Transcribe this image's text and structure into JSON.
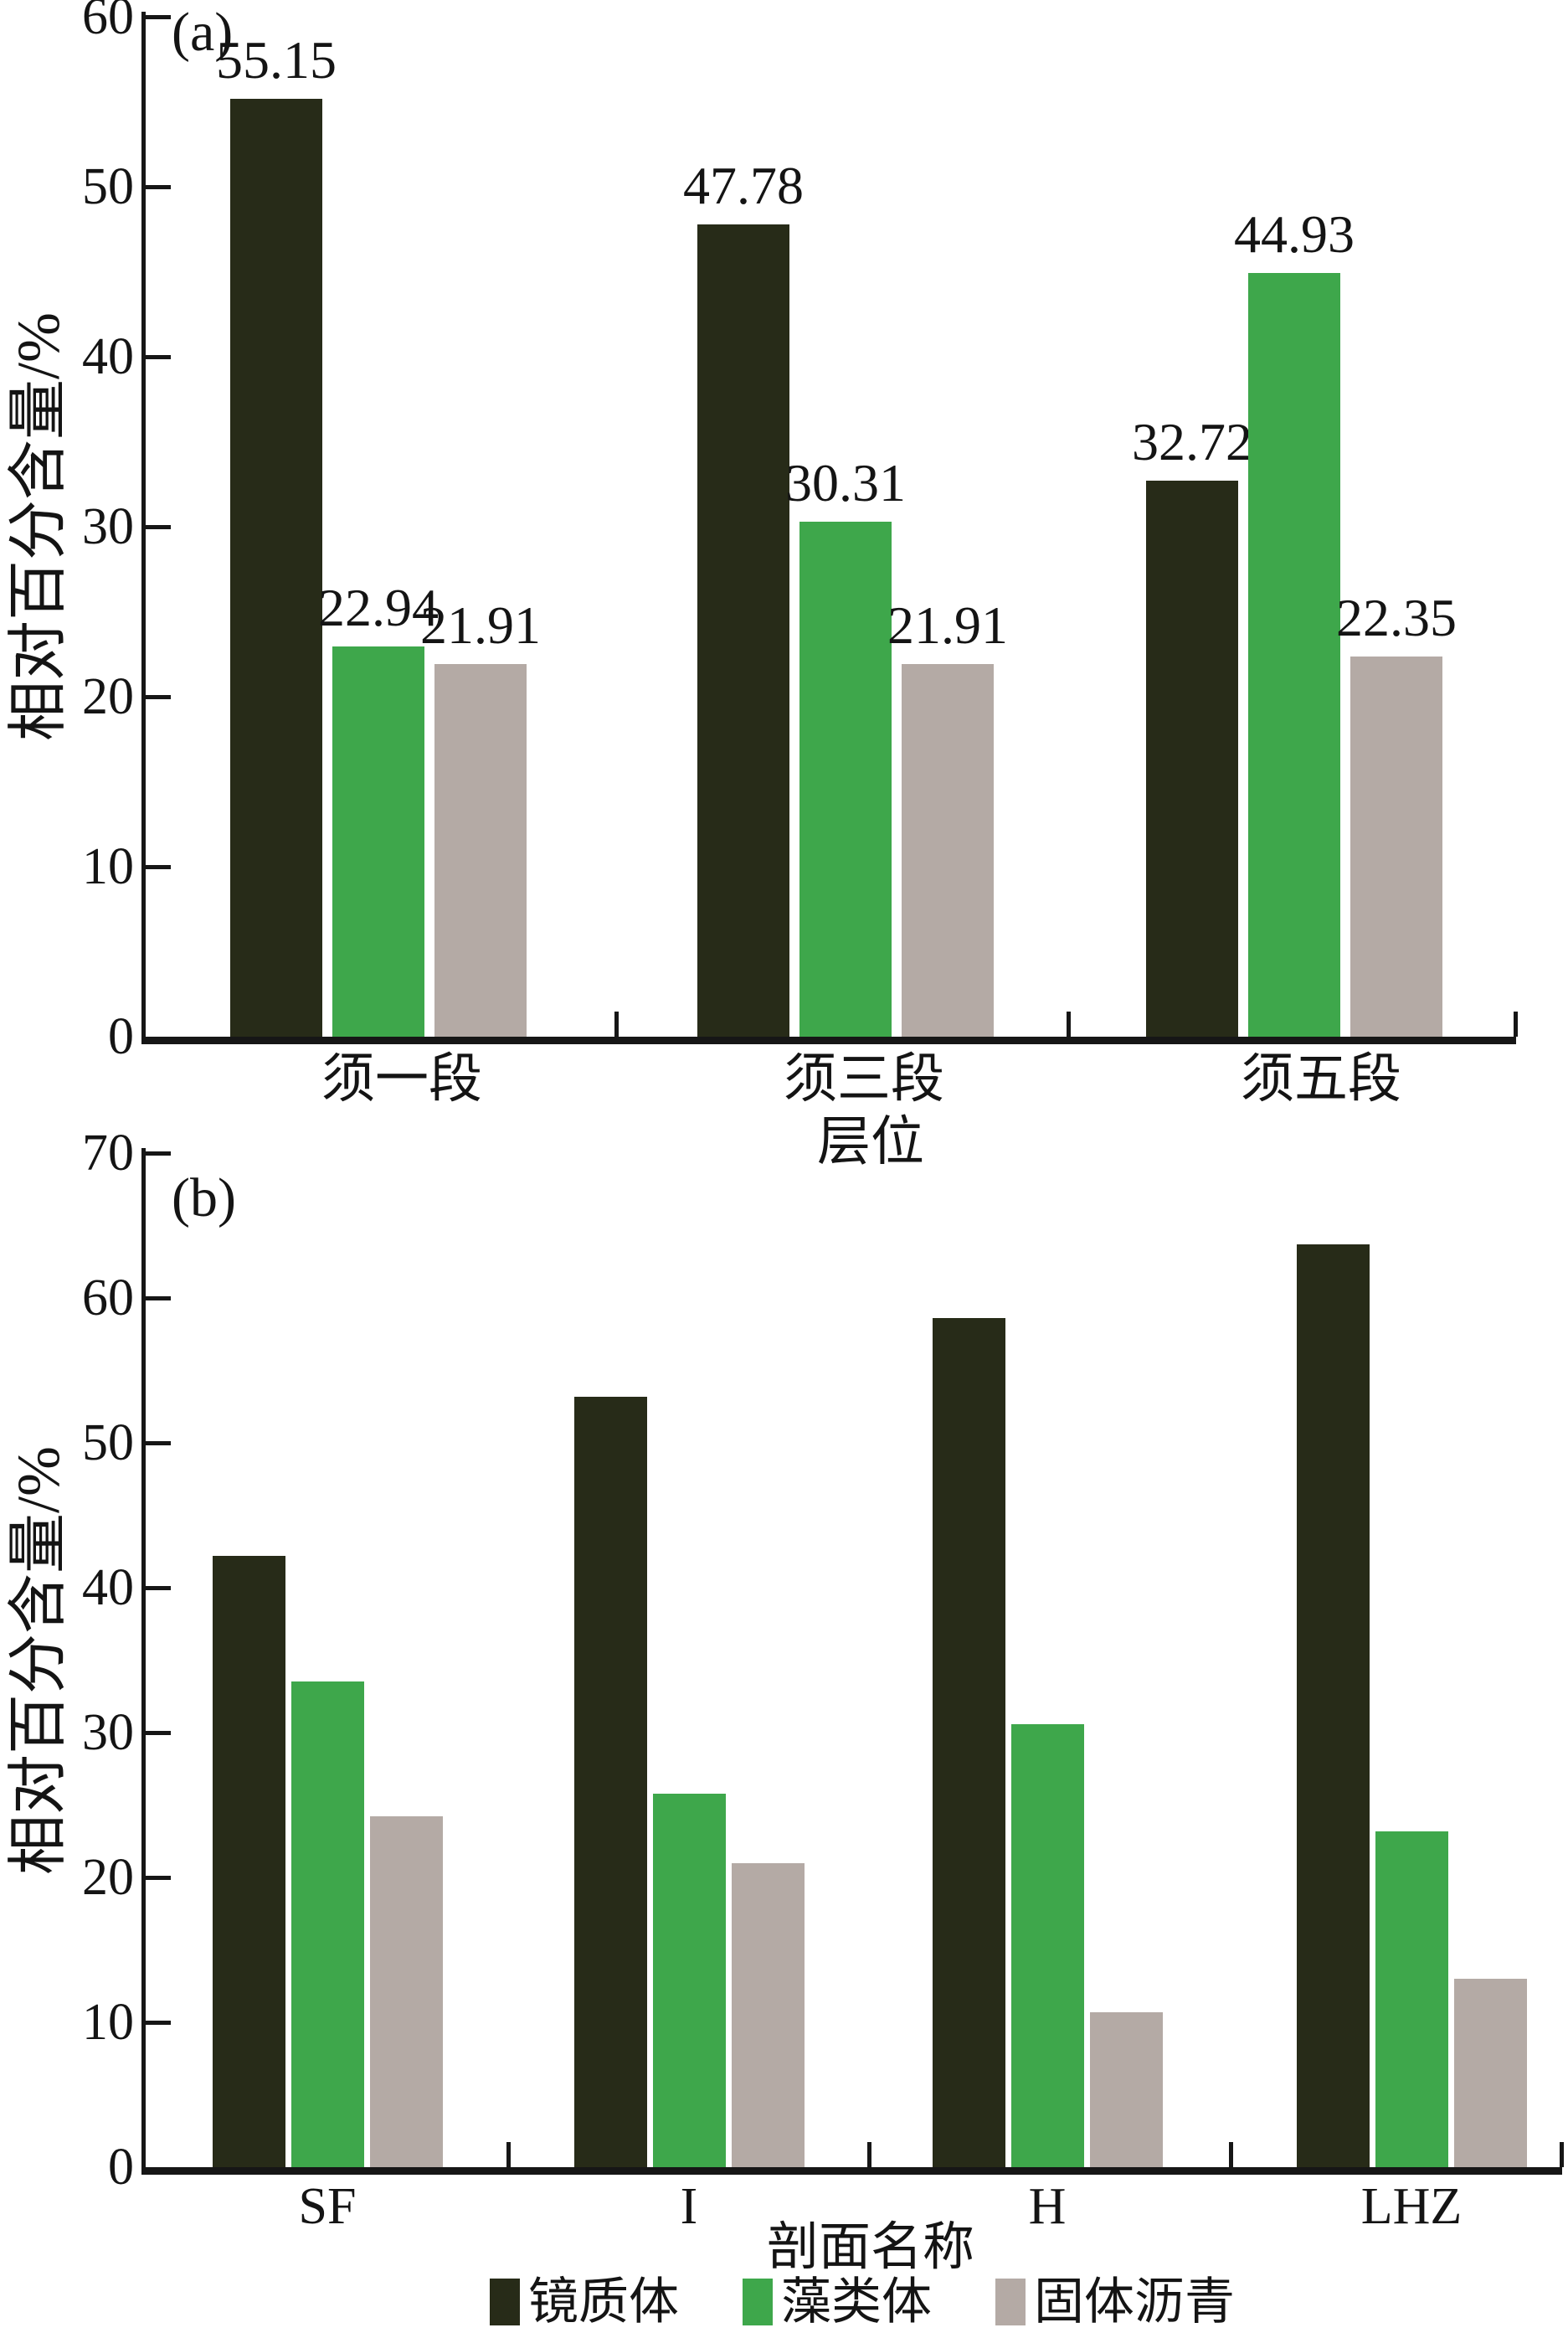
{
  "figure": {
    "background": "#ffffff",
    "panels": [
      {
        "tag": "(a)",
        "ylabel": "相对百分含量/%",
        "xlabel": "层位"
      },
      {
        "tag": "(b)",
        "ylabel": "相对百分含量/%",
        "xlabel": "剖面名称"
      }
    ],
    "colors": {
      "vitrinite_dark": "#272b18",
      "alginite_green": "#3ea74b",
      "solid_bitumen_gray": "#b4aaa5",
      "axis": "#161616"
    }
  },
  "chart_data": [
    {
      "type": "bar",
      "title": "(a)",
      "categories": [
        "须一段",
        "须三段",
        "须五段"
      ],
      "series": [
        {
          "name": "镜质体",
          "color": "#272b18",
          "values": [
            55.15,
            47.78,
            32.72
          ]
        },
        {
          "name": "藻类体",
          "color": "#3ea74b",
          "values": [
            22.94,
            30.31,
            44.93
          ]
        },
        {
          "name": "固体沥青",
          "color": "#b4aaa5",
          "values": [
            21.91,
            21.91,
            22.35
          ]
        }
      ],
      "bar_value_labels": true,
      "xlabel": "层位",
      "ylabel": "相对百分含量/%",
      "ylim": [
        0,
        60
      ],
      "ytick_step": 10,
      "grid": false,
      "legend_position": "none"
    },
    {
      "type": "bar",
      "title": "(b)",
      "categories": [
        "SF",
        "I",
        "H",
        "LHZ"
      ],
      "series": [
        {
          "name": "镜质体",
          "color": "#272b18",
          "values": [
            42.2,
            53.2,
            58.6,
            63.7
          ]
        },
        {
          "name": "藻类体",
          "color": "#3ea74b",
          "values": [
            33.5,
            25.8,
            30.6,
            23.2
          ]
        },
        {
          "name": "固体沥青",
          "color": "#b4aaa5",
          "values": [
            24.2,
            21.0,
            10.7,
            13.0
          ]
        }
      ],
      "bar_value_labels": false,
      "xlabel": "剖面名称",
      "ylabel": "相对百分含量/%",
      "ylim": [
        0,
        70
      ],
      "ytick_step": 10,
      "grid": false,
      "legend_position": "bottom"
    }
  ]
}
